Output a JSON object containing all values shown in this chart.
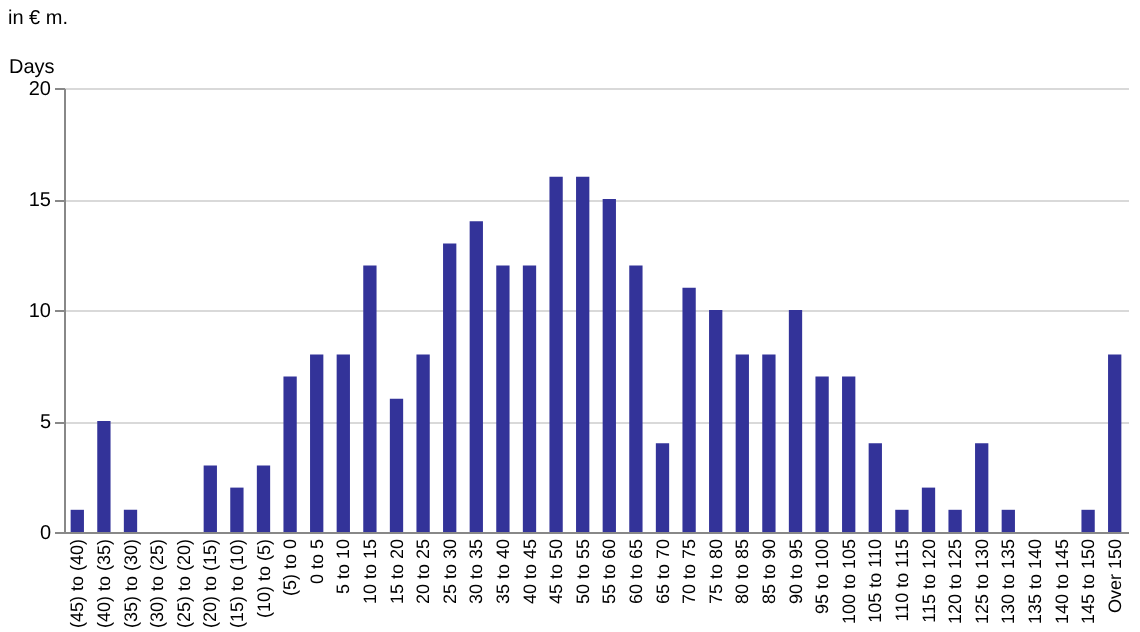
{
  "chart_data": {
    "type": "bar",
    "title": "in € m.",
    "ylabel": "Days",
    "categories": [
      "(45) to (40)",
      "(40) to (35)",
      "(35) to (30)",
      "(30) to (25)",
      "(25) to (20)",
      "(20) to (15)",
      "(15) to (10)",
      "(10) to (5)",
      "(5) to 0",
      "0 to 5",
      "5 to 10",
      "10 to 15",
      "15 to 20",
      "20 to 25",
      "25 to 30",
      "30 to 35",
      "35 to 40",
      "40 to 45",
      "45 to 50",
      "50 to 55",
      "55 to 60",
      "60 to 65",
      "65 to 70",
      "70 to 75",
      "75 to 80",
      "80 to 85",
      "85 to 90",
      "90 to 95",
      "95 to 100",
      "100 to 105",
      "105 to 110",
      "110 to 115",
      "115 to 120",
      "120 to 125",
      "125 to 130",
      "130 to 135",
      "135 to 140",
      "140 to 145",
      "145 to 150",
      "Over 150"
    ],
    "values": [
      1,
      5,
      1,
      0,
      0,
      3,
      2,
      3,
      7,
      8,
      8,
      12,
      6,
      8,
      13,
      14,
      12,
      12,
      16,
      16,
      15,
      12,
      4,
      11,
      10,
      8,
      8,
      10,
      7,
      7,
      4,
      1,
      2,
      1,
      4,
      1,
      0,
      0,
      1,
      8
    ],
    "color": "#333399",
    "ylim": [
      0,
      20
    ],
    "yticks": [
      0,
      5,
      10,
      15,
      20
    ],
    "grid": "y"
  }
}
